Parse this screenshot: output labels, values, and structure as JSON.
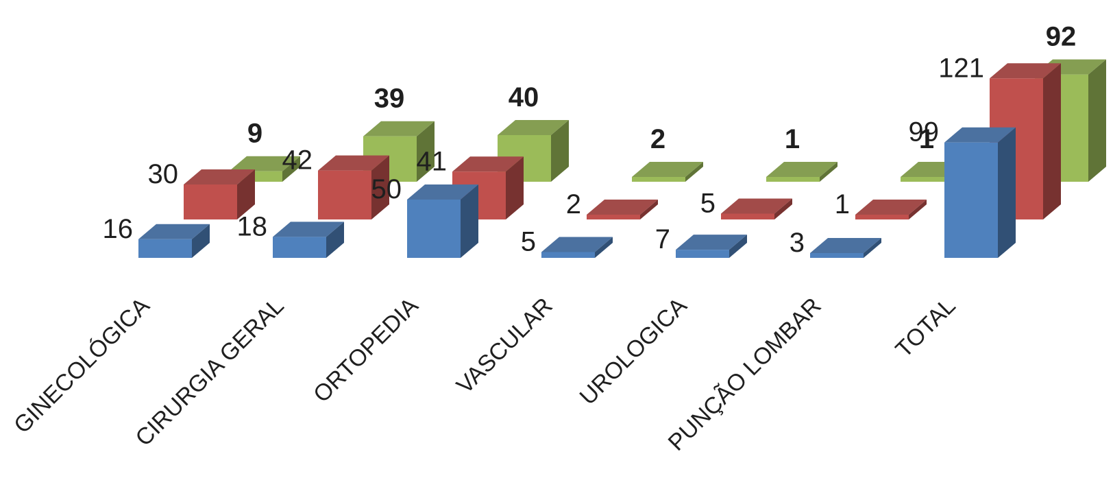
{
  "chart_data": {
    "type": "bar",
    "title": "",
    "xlabel": "",
    "ylabel": "",
    "categories": [
      "GINECOLÓGICA",
      "CIRURGIA GERAL",
      "ORTOPEDIA",
      "VASCULAR",
      "UROLOGICA",
      "PUNÇÃO LOMBAR",
      "TOTAL"
    ],
    "series": [
      {
        "color": "#4F81BD",
        "values": [
          16,
          18,
          50,
          5,
          7,
          3,
          99
        ]
      },
      {
        "color": "#C0504D",
        "values": [
          30,
          42,
          41,
          2,
          5,
          1,
          121
        ]
      },
      {
        "color": "#9BBB59",
        "values": [
          9,
          39,
          40,
          2,
          1,
          1,
          92
        ]
      }
    ],
    "value_label_bold_series": [
      2
    ],
    "ylim": [
      0,
      125
    ],
    "grid": false,
    "legend": "none",
    "style": "3d-clustered-column"
  }
}
